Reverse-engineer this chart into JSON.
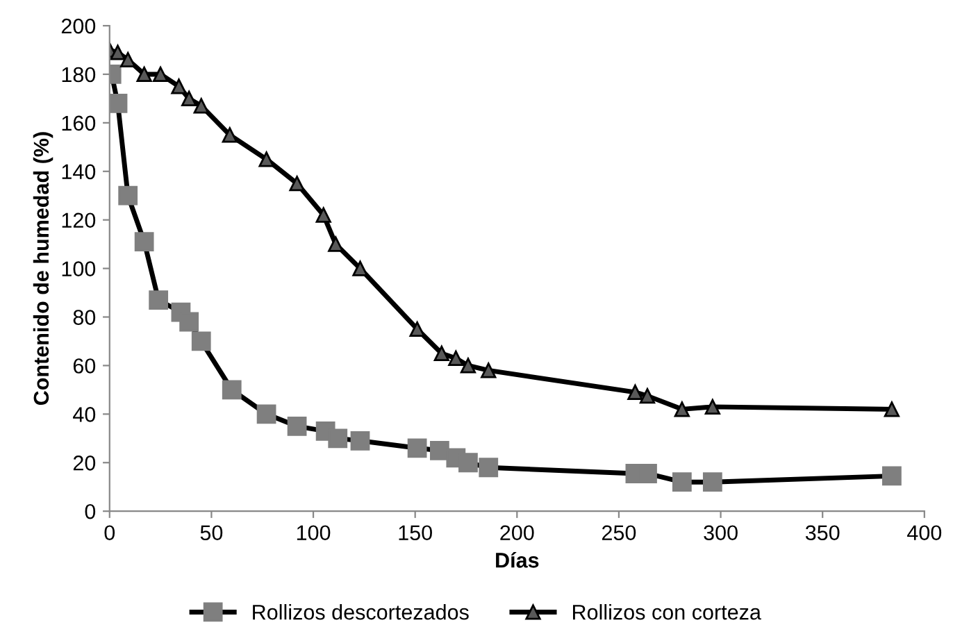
{
  "chart_data": {
    "type": "line",
    "xlabel": "Días",
    "ylabel": "Contenido de humedad (%)",
    "xlim": [
      0,
      400
    ],
    "xticks": [
      0,
      50,
      100,
      150,
      200,
      250,
      300,
      350,
      400
    ],
    "ylim": [
      0,
      200
    ],
    "yticks": [
      0,
      20,
      40,
      60,
      80,
      100,
      120,
      140,
      160,
      180,
      200
    ],
    "grid": false,
    "legend": "bottom",
    "series": [
      {
        "name": "Rollizos descortezados",
        "color": "#7f7f7f",
        "marker": "square",
        "x": [
          1,
          4,
          9,
          17,
          24,
          35,
          39,
          45,
          60,
          77,
          92,
          106,
          112,
          123,
          151,
          162,
          170,
          176,
          186,
          258,
          264,
          281,
          296,
          384
        ],
        "values": [
          180,
          168,
          130,
          111,
          87,
          82,
          78,
          70,
          50,
          40,
          35,
          33,
          30,
          29,
          26,
          25,
          22,
          20,
          18,
          15.5,
          15.5,
          12,
          12,
          14.5
        ]
      },
      {
        "name": "Rollizos con corteza",
        "color": "#595959",
        "marker": "triangle",
        "x": [
          0,
          4,
          9,
          17,
          25,
          34,
          39,
          45,
          59,
          77,
          92,
          105,
          111,
          123,
          151,
          163,
          170,
          176,
          186,
          258,
          264,
          281,
          296,
          384
        ],
        "values": [
          190,
          189,
          186,
          180,
          180,
          175,
          170,
          167,
          155,
          145,
          135,
          122,
          110,
          100,
          75,
          65,
          63,
          60,
          58,
          49,
          47.5,
          42,
          43,
          42
        ]
      }
    ]
  }
}
